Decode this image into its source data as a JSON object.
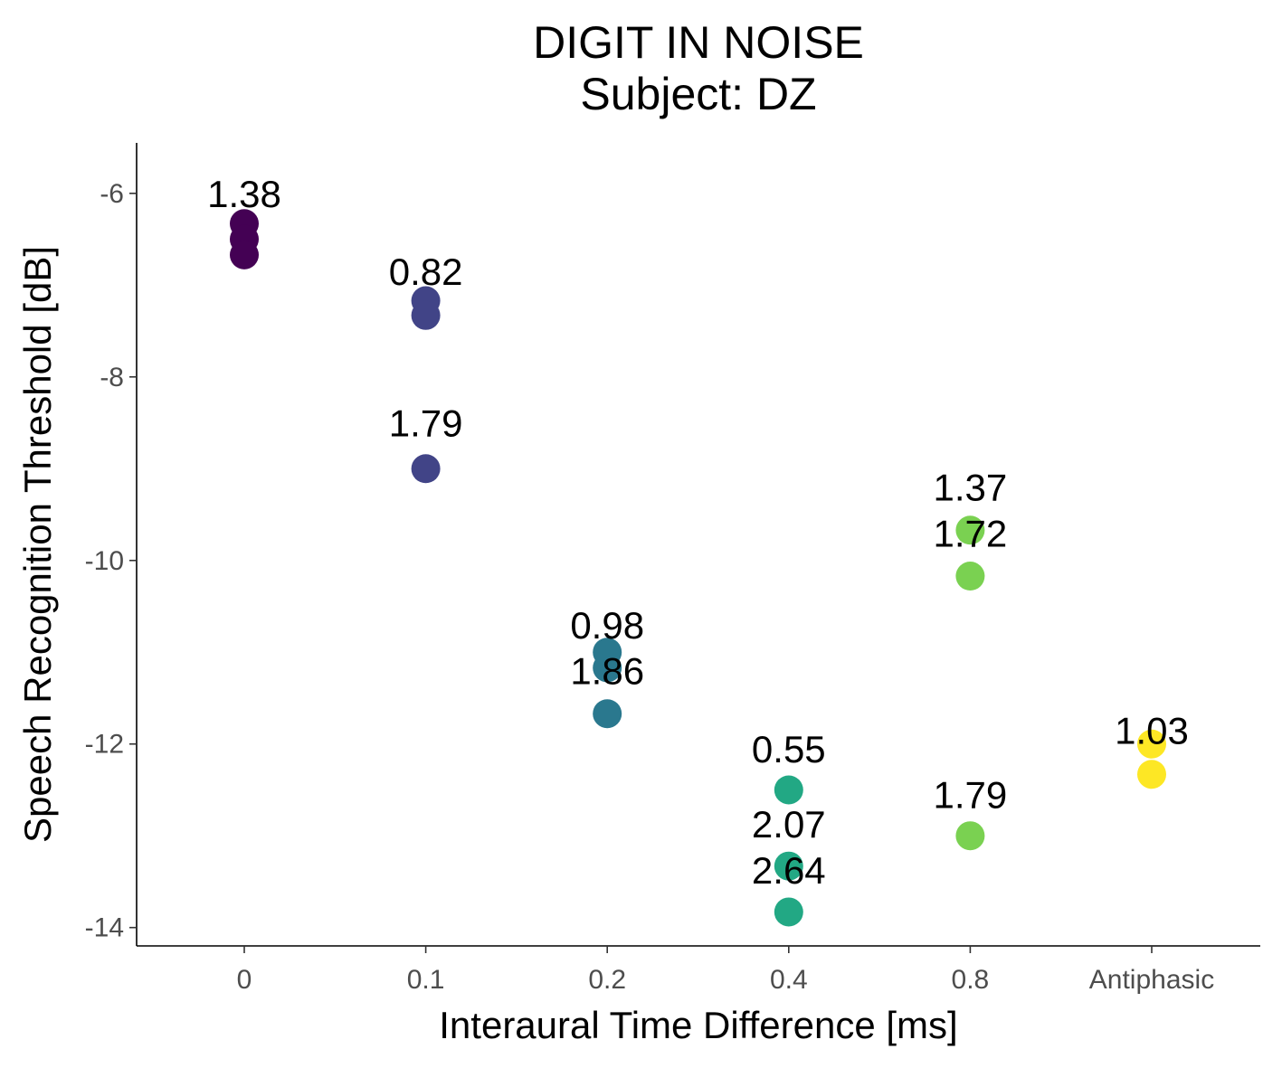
{
  "chart_data": {
    "type": "scatter",
    "title": "DIGIT IN NOISE",
    "subtitle": "Subject: DZ",
    "xlabel": "Interaural Time Difference [ms]",
    "ylabel": "Speech Recognition Threshold [dB]",
    "categories": [
      "0",
      "0.1",
      "0.2",
      "0.4",
      "0.8",
      "Antiphasic"
    ],
    "category_colors": [
      "#440154",
      "#414487",
      "#2a788e",
      "#22a884",
      "#7ad151",
      "#fde725"
    ],
    "ylim": [
      -14.2,
      -5.45
    ],
    "yticks": [
      -14,
      -12,
      -10,
      -8,
      -6
    ],
    "grid": false,
    "legend": "none",
    "points": [
      {
        "x": "0",
        "y": -6.33
      },
      {
        "x": "0",
        "y": -6.5
      },
      {
        "x": "0",
        "y": -6.67
      },
      {
        "x": "0.1",
        "y": -7.17
      },
      {
        "x": "0.1",
        "y": -7.33
      },
      {
        "x": "0.1",
        "y": -9.0
      },
      {
        "x": "0.2",
        "y": -11.0
      },
      {
        "x": "0.2",
        "y": -11.17
      },
      {
        "x": "0.2",
        "y": -11.67
      },
      {
        "x": "0.4",
        "y": -12.5
      },
      {
        "x": "0.4",
        "y": -13.33
      },
      {
        "x": "0.4",
        "y": -13.83
      },
      {
        "x": "0.8",
        "y": -9.67
      },
      {
        "x": "0.8",
        "y": -10.17
      },
      {
        "x": "0.8",
        "y": -13.0
      },
      {
        "x": "Antiphasic",
        "y": -12.0
      },
      {
        "x": "Antiphasic",
        "y": -12.33
      }
    ],
    "labels": [
      {
        "x": "0",
        "y": -6.0,
        "text": "1.38"
      },
      {
        "x": "0.1",
        "y": -6.85,
        "text": "0.82"
      },
      {
        "x": "0.1",
        "y": -8.5,
        "text": "1.79"
      },
      {
        "x": "0.8",
        "y": -9.2,
        "text": "1.37"
      },
      {
        "x": "0.8",
        "y": -9.7,
        "text": "1.72"
      },
      {
        "x": "0.2",
        "y": -10.7,
        "text": "0.98"
      },
      {
        "x": "0.2",
        "y": -11.2,
        "text": "1.86"
      },
      {
        "x": "Antiphasic",
        "y": -11.85,
        "text": "1.03"
      },
      {
        "x": "0.4",
        "y": -12.05,
        "text": "0.55"
      },
      {
        "x": "0.8",
        "y": -12.55,
        "text": "1.79"
      },
      {
        "x": "0.4",
        "y": -12.87,
        "text": "2.07"
      },
      {
        "x": "0.4",
        "y": -13.37,
        "text": "2.64"
      }
    ]
  }
}
